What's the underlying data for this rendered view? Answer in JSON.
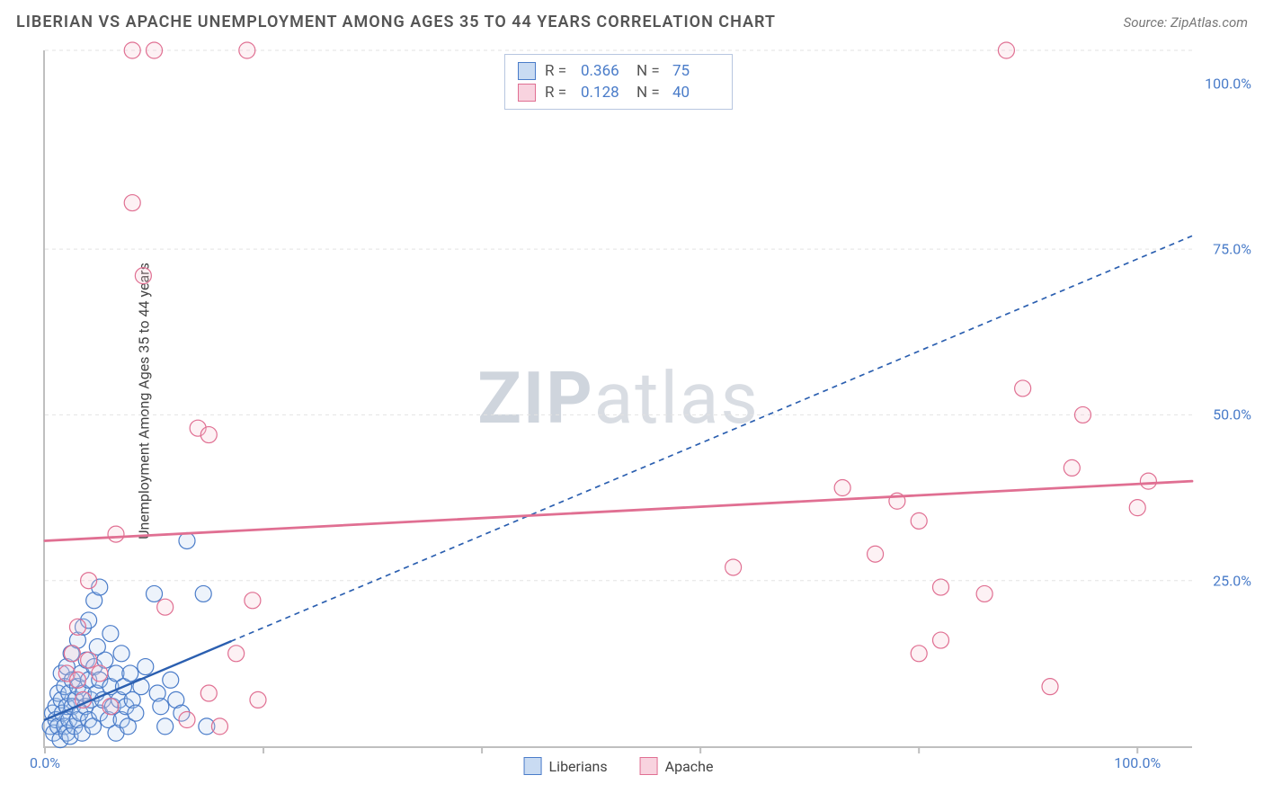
{
  "title": "LIBERIAN VS APACHE UNEMPLOYMENT AMONG AGES 35 TO 44 YEARS CORRELATION CHART",
  "source_prefix": "Source: ",
  "source_name": "ZipAtlas.com",
  "y_axis_label": "Unemployment Among Ages 35 to 44 years",
  "watermark_a": "ZIP",
  "watermark_b": "atlas",
  "chart": {
    "type": "scatter-correlation",
    "background_color": "#ffffff",
    "axis_color": "#bfbfbf",
    "grid_color": "#e3e3e3",
    "grid_dash": "4 4",
    "tick_label_color": "#4a7cc9",
    "tick_fontsize": 16,
    "title_fontsize": 18,
    "label_fontsize": 16,
    "marker_radius": 9,
    "marker_fill_opacity": 0.25,
    "marker_stroke_width": 1.2,
    "xlim": [
      0,
      105
    ],
    "ylim": [
      0,
      105
    ],
    "x_ticks_major": [
      0,
      20,
      40,
      60,
      80,
      100
    ],
    "y_gridlines": [
      25,
      50,
      75,
      105
    ],
    "x_tick_labels": {
      "0": "0.0%",
      "100": "100.0%"
    },
    "y_tick_labels": {
      "25": "25.0%",
      "50": "50.0%",
      "75": "75.0%",
      "100": "100.0%"
    },
    "series": [
      {
        "name": "Liberians",
        "color_stroke": "#4a7cc9",
        "color_fill": "#b9d0ee",
        "swatch_fill": "#c9dbf2",
        "swatch_border": "#4a7cc9",
        "R": 0.366,
        "N": 75,
        "trend": {
          "x1": 0,
          "y1": 4,
          "x2": 105,
          "y2": 77,
          "solid_until_x": 17,
          "color": "#2b5fb0",
          "width": 2.4,
          "dash": "6 5"
        },
        "points": [
          [
            0.5,
            3
          ],
          [
            0.7,
            5
          ],
          [
            0.8,
            2
          ],
          [
            1,
            6
          ],
          [
            1,
            4
          ],
          [
            1.2,
            8
          ],
          [
            1.2,
            3
          ],
          [
            1.4,
            1
          ],
          [
            1.5,
            7
          ],
          [
            1.5,
            11
          ],
          [
            1.6,
            5
          ],
          [
            1.8,
            3
          ],
          [
            1.8,
            9
          ],
          [
            2,
            2
          ],
          [
            2,
            6
          ],
          [
            2,
            12
          ],
          [
            2.2,
            4
          ],
          [
            2.2,
            8
          ],
          [
            2.3,
            1.5
          ],
          [
            2.4,
            14
          ],
          [
            2.5,
            6
          ],
          [
            2.5,
            10
          ],
          [
            2.7,
            3
          ],
          [
            2.8,
            7
          ],
          [
            3,
            4
          ],
          [
            3,
            9
          ],
          [
            3,
            16
          ],
          [
            3.2,
            5
          ],
          [
            3.3,
            11
          ],
          [
            3.4,
            2
          ],
          [
            3.5,
            8
          ],
          [
            3.5,
            18
          ],
          [
            3.7,
            6
          ],
          [
            3.8,
            13
          ],
          [
            4,
            4
          ],
          [
            4,
            10
          ],
          [
            4,
            19
          ],
          [
            4.2,
            7
          ],
          [
            4.4,
            3
          ],
          [
            4.5,
            12
          ],
          [
            4.5,
            22
          ],
          [
            4.7,
            8
          ],
          [
            4.8,
            15
          ],
          [
            5,
            5
          ],
          [
            5,
            10
          ],
          [
            5,
            24
          ],
          [
            5.3,
            7
          ],
          [
            5.5,
            13
          ],
          [
            5.8,
            4
          ],
          [
            6,
            9
          ],
          [
            6,
            17
          ],
          [
            6.2,
            6
          ],
          [
            6.5,
            2
          ],
          [
            6.5,
            11
          ],
          [
            6.8,
            7
          ],
          [
            7,
            4
          ],
          [
            7,
            14
          ],
          [
            7.2,
            9
          ],
          [
            7.4,
            6
          ],
          [
            7.6,
            3
          ],
          [
            7.8,
            11
          ],
          [
            8,
            7
          ],
          [
            8.3,
            5
          ],
          [
            8.8,
            9
          ],
          [
            9.2,
            12
          ],
          [
            10,
            23
          ],
          [
            10.3,
            8
          ],
          [
            10.6,
            6
          ],
          [
            11,
            3
          ],
          [
            11.5,
            10
          ],
          [
            12,
            7
          ],
          [
            12.5,
            5
          ],
          [
            13,
            31
          ],
          [
            14.5,
            23
          ],
          [
            14.8,
            3
          ]
        ]
      },
      {
        "name": "Apache",
        "color_stroke": "#e06f92",
        "color_fill": "#f6c6d5",
        "swatch_fill": "#f8d3df",
        "swatch_border": "#e06f92",
        "R": 0.128,
        "N": 40,
        "trend": {
          "x1": 0,
          "y1": 31,
          "x2": 105,
          "y2": 40,
          "solid_until_x": 105,
          "color": "#e06f92",
          "width": 2.8,
          "dash": ""
        },
        "points": [
          [
            2,
            11
          ],
          [
            2.5,
            14
          ],
          [
            3,
            10
          ],
          [
            3,
            18
          ],
          [
            3.5,
            7
          ],
          [
            4,
            13
          ],
          [
            4,
            25
          ],
          [
            5,
            11
          ],
          [
            6,
            6
          ],
          [
            6.5,
            32
          ],
          [
            8,
            105
          ],
          [
            8,
            82
          ],
          [
            9,
            71
          ],
          [
            10,
            105
          ],
          [
            11,
            21
          ],
          [
            13,
            4
          ],
          [
            14,
            48
          ],
          [
            15,
            8
          ],
          [
            15,
            47
          ],
          [
            16,
            3
          ],
          [
            17.5,
            14
          ],
          [
            18.5,
            105
          ],
          [
            19,
            22
          ],
          [
            19.5,
            7
          ],
          [
            63,
            27
          ],
          [
            73,
            39
          ],
          [
            76,
            29
          ],
          [
            78,
            37
          ],
          [
            80,
            34
          ],
          [
            80,
            14
          ],
          [
            82,
            24
          ],
          [
            82,
            16
          ],
          [
            86,
            23
          ],
          [
            88,
            105
          ],
          [
            89.5,
            54
          ],
          [
            92,
            9
          ],
          [
            94,
            42
          ],
          [
            95,
            50
          ],
          [
            100,
            36
          ],
          [
            101,
            40
          ]
        ]
      }
    ],
    "legend_bottom": [
      {
        "label": "Liberians",
        "fill": "#c9dbf2",
        "border": "#4a7cc9"
      },
      {
        "label": "Apache",
        "fill": "#f8d3df",
        "border": "#e06f92"
      }
    ]
  }
}
